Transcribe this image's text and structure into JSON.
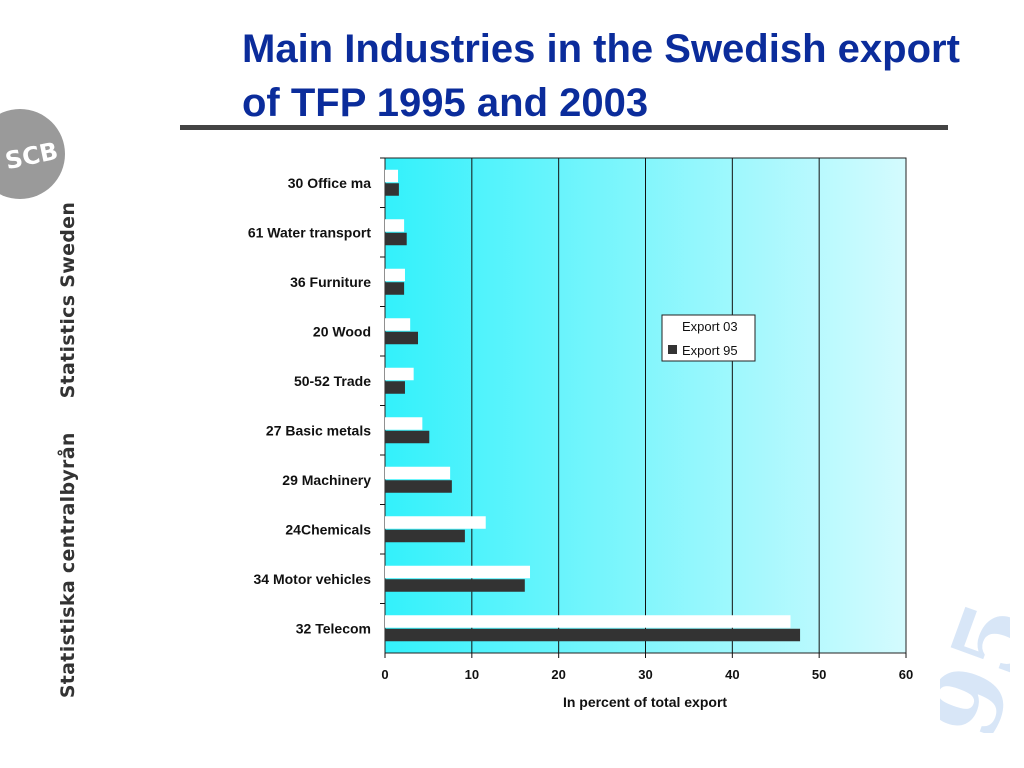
{
  "slide": {
    "title": "Main Industries in the Swedish export of TFP 1995 and 2003",
    "logo_text": "SCB",
    "side_text_left": "Statistiska centralbyrån",
    "side_text_right": "Statistics Sweden",
    "watermark": "95"
  },
  "chart_data": {
    "type": "bar",
    "orientation": "horizontal",
    "categories": [
      "30 Office ma",
      "61 Water transport",
      "36 Furniture",
      "20 Wood",
      "50-52 Trade",
      "27 Basic metals",
      "29 Machinery",
      "24Chemicals",
      "34 Motor vehicles",
      "32 Telecom"
    ],
    "series": [
      {
        "name": "Export 03",
        "color": "#ffffff",
        "values": [
          1.5,
          2.2,
          2.3,
          2.9,
          3.3,
          4.3,
          7.5,
          11.6,
          16.7,
          46.7
        ]
      },
      {
        "name": "Export 95",
        "color": "#333333",
        "values": [
          1.6,
          2.5,
          2.2,
          3.8,
          2.3,
          5.1,
          7.7,
          9.2,
          16.1,
          47.8
        ]
      }
    ],
    "xlabel": "In percent of total export",
    "ylabel": "",
    "xlim": [
      0,
      60
    ],
    "xticks": [
      0,
      10,
      20,
      30,
      40,
      50,
      60
    ],
    "grid": "vertical",
    "legend_position": "center-right",
    "background_gradient": [
      "#33f1fb",
      "#d4fbfe"
    ]
  }
}
